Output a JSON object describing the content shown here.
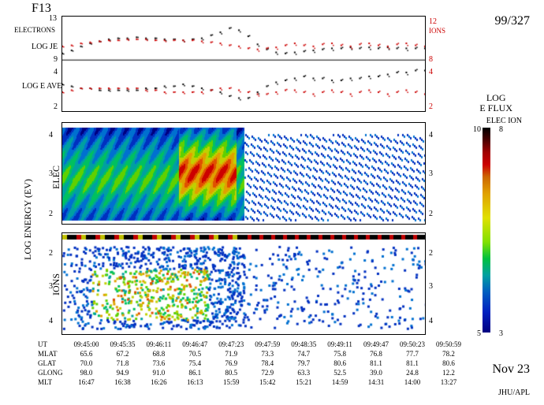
{
  "header": {
    "satellite": "F13",
    "date_code": "99/327",
    "date_text": "Nov 23",
    "credit": "JHU/APL"
  },
  "colorbar": {
    "title_line1": "LOG",
    "title_line2": "E FLUX",
    "labels_line": "ELEC   ION",
    "elec_max": "10",
    "ion_max": "8",
    "elec_min": "5",
    "ion_min": "3",
    "gradient": [
      "#000000",
      "#4a0000",
      "#a00000",
      "#cc0000",
      "#cc6600",
      "#e0a000",
      "#e0e000",
      "#80e000",
      "#00c040",
      "#00a0a0",
      "#0060c0",
      "#0020c0",
      "#000080"
    ]
  },
  "panel1": {
    "left_label_top": "ELECTRONS",
    "left_label_je": "LOG JE",
    "left_label_eave": "LOG E AVE",
    "right_label": "IONS",
    "yleft_ticks": [
      "13",
      "9",
      "4",
      "2"
    ],
    "yright_ticks": [
      "12",
      "8",
      "4",
      "2"
    ],
    "electrons_je_trace": [
      9.5,
      9.8,
      10.2,
      10.5,
      10.7,
      10.9,
      11.0,
      11.0,
      11.1,
      11.0,
      11.0,
      10.9,
      10.9,
      10.8,
      10.9,
      11.0,
      11.3,
      11.6,
      12.0,
      11.8,
      11.2,
      10.4,
      9.9,
      9.6,
      9.5,
      9.6,
      9.7,
      9.8,
      9.9,
      10.0,
      10.0,
      10.1,
      10.0,
      10.1,
      10.0,
      10.1,
      10.0,
      10.0,
      10.0,
      10.0
    ],
    "ions_je_trace": [
      9.2,
      9.3,
      9.5,
      9.6,
      9.7,
      9.8,
      9.8,
      9.9,
      9.9,
      9.9,
      9.8,
      9.8,
      9.8,
      9.8,
      9.8,
      9.7,
      9.6,
      9.5,
      9.3,
      9.2,
      9.0,
      8.9,
      9.0,
      9.1,
      9.3,
      9.5,
      9.3,
      9.2,
      9.4,
      9.5,
      9.3,
      9.2,
      9.4,
      9.5,
      9.3,
      9.2,
      9.4,
      9.5,
      9.3,
      9.2
    ],
    "electrons_eave_trace": [
      3.2,
      3.1,
      3.0,
      3.0,
      2.9,
      2.9,
      2.9,
      2.9,
      2.9,
      3.0,
      3.0,
      3.1,
      3.1,
      3.2,
      3.1,
      3.0,
      2.9,
      2.8,
      2.6,
      2.5,
      2.5,
      2.8,
      3.1,
      3.3,
      3.4,
      3.5,
      3.6,
      3.5,
      3.5,
      3.4,
      3.4,
      3.5,
      3.5,
      3.6,
      3.6,
      3.7,
      3.8,
      3.8,
      3.9,
      3.9
    ],
    "ions_eave_trace": [
      2.8,
      2.9,
      3.0,
      3.0,
      3.0,
      3.0,
      3.0,
      3.0,
      3.0,
      2.9,
      2.9,
      2.8,
      2.8,
      2.8,
      2.8,
      2.8,
      2.9,
      3.0,
      3.0,
      2.9,
      2.8,
      2.7,
      2.7,
      2.8,
      2.9,
      2.9,
      2.8,
      2.7,
      2.8,
      2.9,
      2.8,
      2.7,
      2.8,
      2.9,
      2.8,
      2.7,
      2.8,
      2.9,
      2.8,
      2.7
    ],
    "yleft_range_je": [
      9,
      13
    ],
    "yright_range_je": [
      8,
      12
    ],
    "yleft_range_eave": [
      2,
      4
    ],
    "yright_range_eave": [
      2,
      4
    ],
    "color_electrons": "#000000",
    "color_ions": "#cc0000"
  },
  "panel2": {
    "ylabel": "ELEC",
    "yticks": [
      "4",
      "3",
      "2"
    ],
    "yrange": [
      2,
      4.5
    ],
    "spectro_palette": [
      "#000080",
      "#0030c0",
      "#0070d0",
      "#00a0a0",
      "#00c060",
      "#60d000",
      "#c0d000",
      "#e0a000",
      "#e05000",
      "#cc0000",
      "#600000"
    ],
    "background": "#ffffff",
    "intense_region_xrange": [
      0.0,
      0.5
    ],
    "hot_core_xrange": [
      0.32,
      0.48
    ],
    "diffuse_after": [
      0.5,
      1.0
    ]
  },
  "panel3": {
    "ylabel": "IONS",
    "yticks": [
      "2",
      "3",
      "4"
    ],
    "yrange": [
      4.5,
      1.8
    ],
    "band_top_y": 1.9,
    "band_colors": [
      "#c0c000",
      "#000000",
      "#c00000"
    ],
    "scatter_xrange": [
      0.0,
      1.0
    ],
    "scatter_hot_xrange": [
      0.08,
      0.4
    ]
  },
  "ylabel_energy": "LOG ENERGY (EV)",
  "xtick_rows": {
    "labels": [
      "UT",
      "MLAT",
      "GLAT",
      "GLONG",
      "MLT"
    ],
    "cols": [
      [
        "09:45:00",
        "65.6",
        "70.0",
        "98.0",
        "16:47"
      ],
      [
        "09:45:35",
        "67.2",
        "71.8",
        "94.9",
        "16:38"
      ],
      [
        "09:46:11",
        "68.8",
        "73.6",
        "91.0",
        "16:26"
      ],
      [
        "09:46:47",
        "70.5",
        "75.4",
        "86.1",
        "16:13"
      ],
      [
        "09:47:23",
        "71.9",
        "76.9",
        "80.5",
        "15:59"
      ],
      [
        "09:47:59",
        "73.3",
        "78.4",
        "72.9",
        "15:42"
      ],
      [
        "09:48:35",
        "74.7",
        "79.7",
        "63.3",
        "15:21"
      ],
      [
        "09:49:11",
        "75.8",
        "80.6",
        "52.5",
        "14:59"
      ],
      [
        "09:49:47",
        "76.8",
        "81.1",
        "39.0",
        "14:31"
      ],
      [
        "09:50:23",
        "77.7",
        "81.1",
        "24.8",
        "14:00"
      ],
      [
        "09:50:59",
        "78.2",
        "80.6",
        "12.2",
        "13:27"
      ]
    ]
  }
}
